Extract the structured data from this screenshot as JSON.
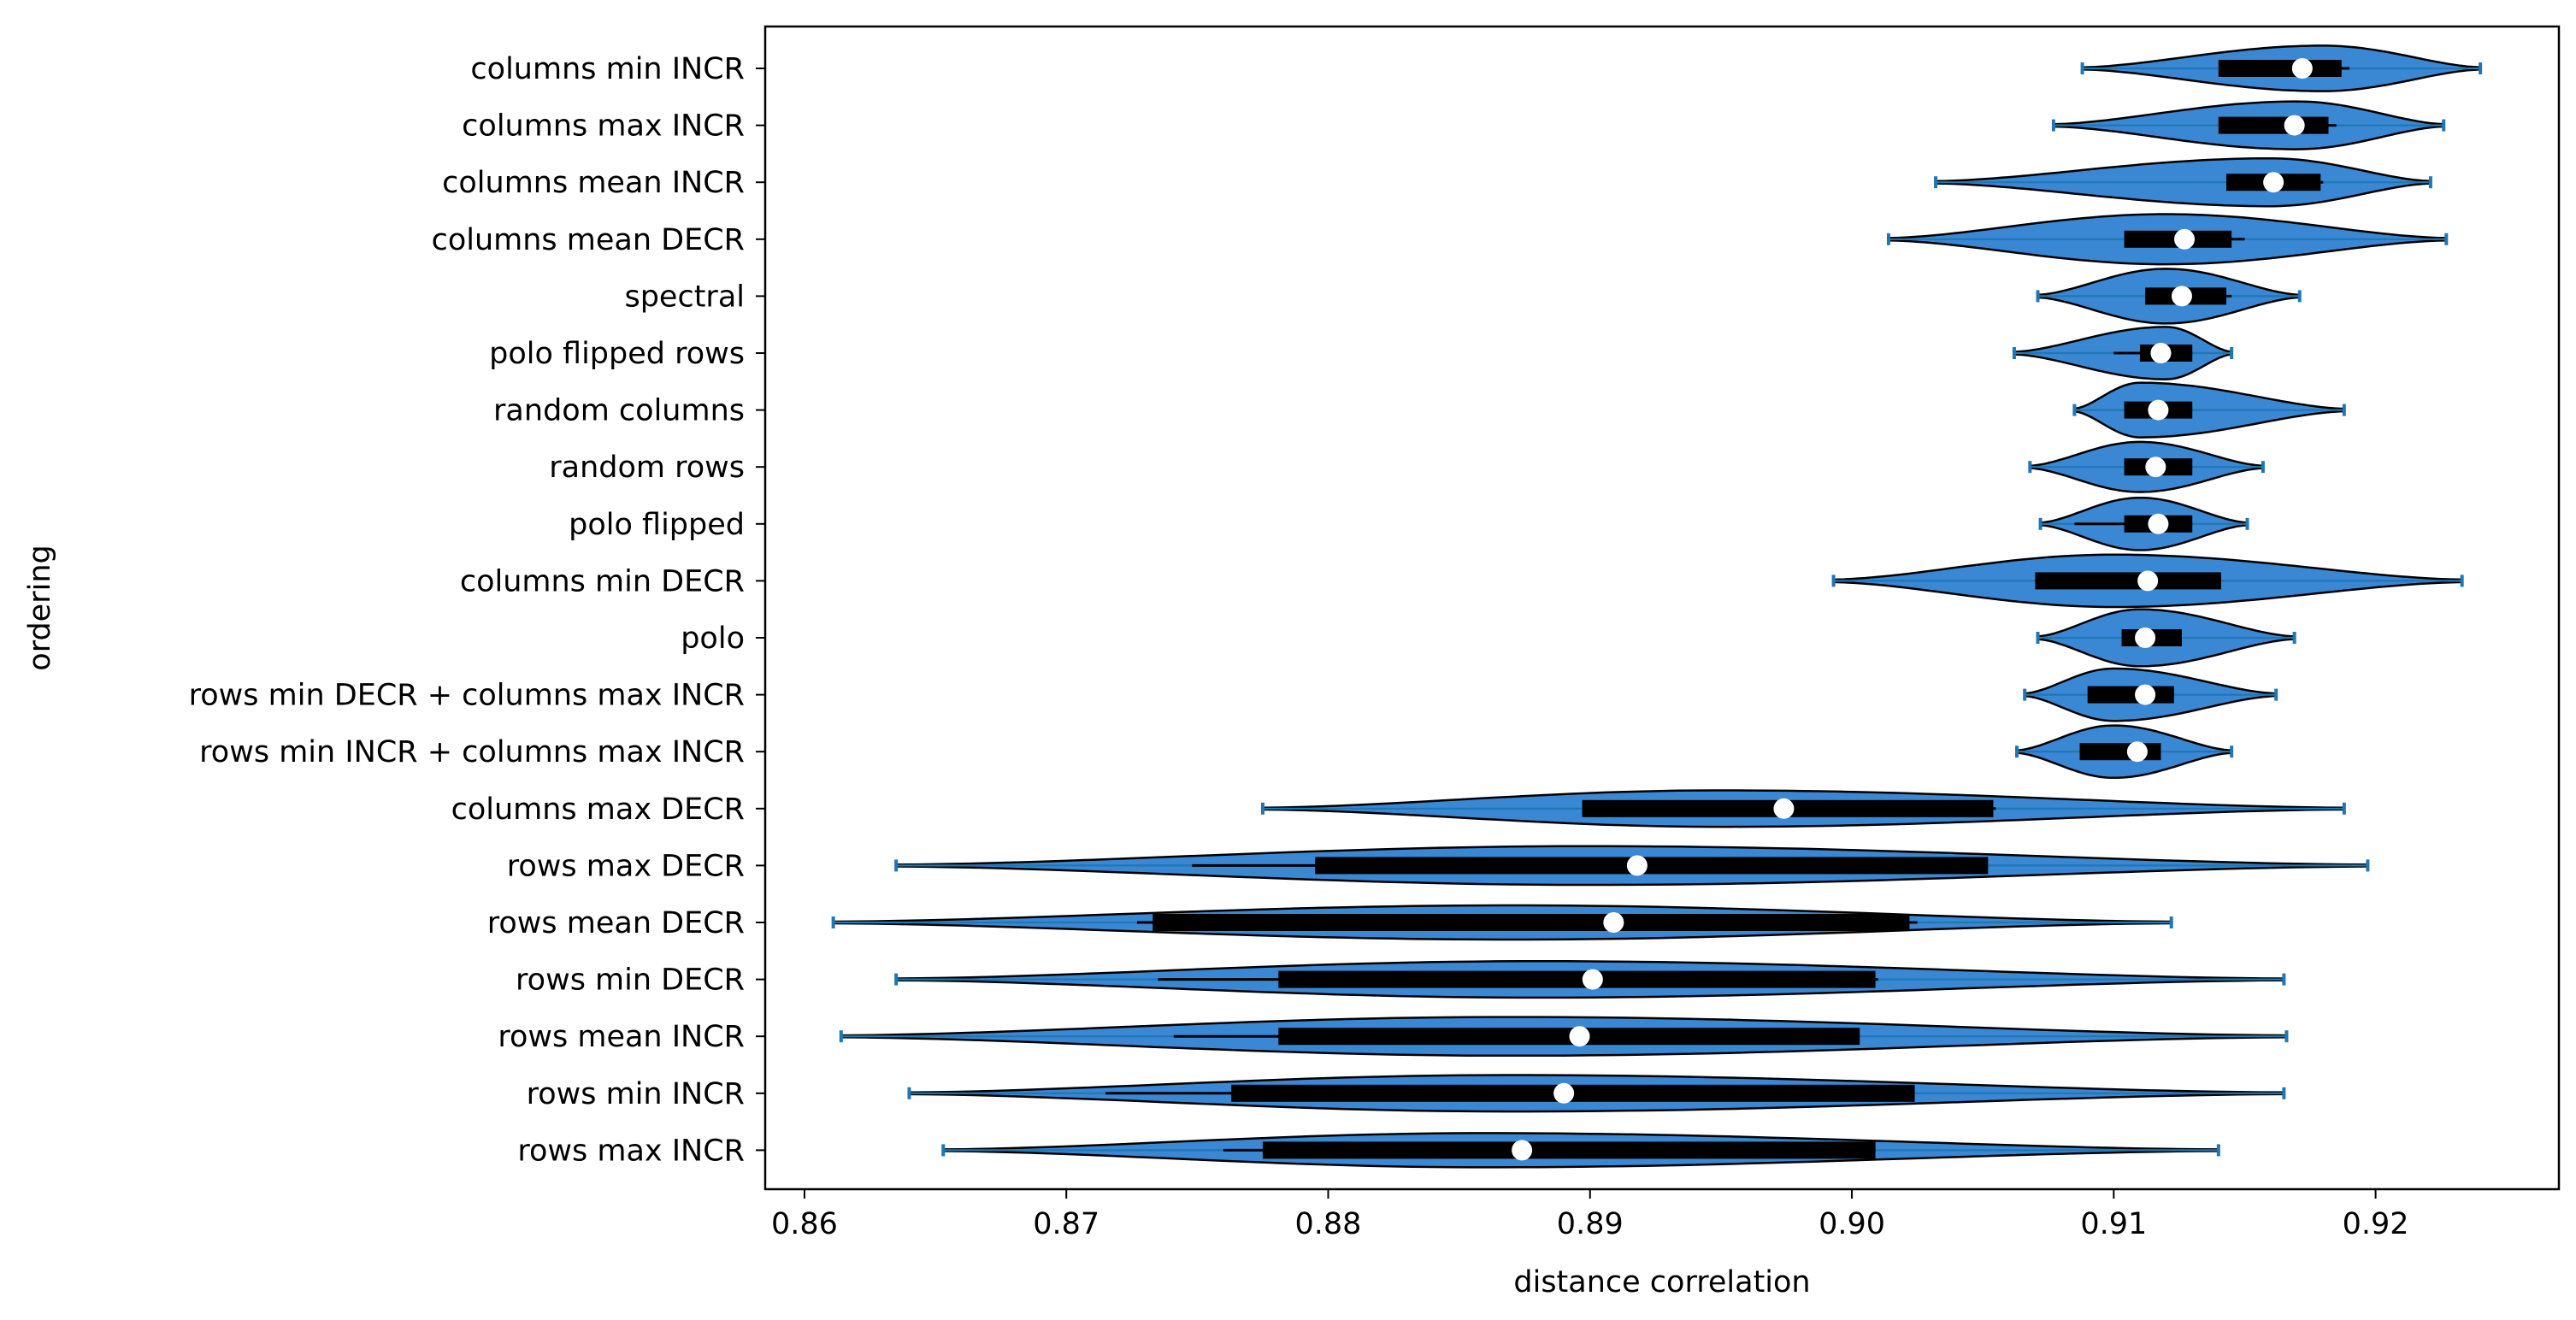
{
  "chart_data": {
    "type": "violin",
    "orientation": "horizontal",
    "xlabel": "distance correlation",
    "ylabel": "ordering",
    "xlim": [
      0.8585,
      0.927
    ],
    "xticks": [
      0.86,
      0.87,
      0.88,
      0.89,
      0.9,
      0.91,
      0.92
    ],
    "xtick_labels": [
      "0.86",
      "0.87",
      "0.88",
      "0.89",
      "0.90",
      "0.91",
      "0.92"
    ],
    "grid": false,
    "colors": {
      "violin_fill": "#3a87d4",
      "violin_edge": "#000000",
      "whisker": "#1f77b4",
      "box": "#000000",
      "median": "#ffffff"
    },
    "violins": [
      {
        "label": "columns min INCR",
        "min": 0.9088,
        "q1": 0.914,
        "median": 0.9172,
        "q3": 0.9187,
        "max": 0.924,
        "wlow": 0.915,
        "whigh": 0.919,
        "half_width": 0.4,
        "peak": 0.918
      },
      {
        "label": "columns max INCR",
        "min": 0.9077,
        "q1": 0.914,
        "median": 0.9169,
        "q3": 0.9182,
        "max": 0.9226,
        "wlow": 0.914,
        "whigh": 0.9185,
        "half_width": 0.42,
        "peak": 0.917
      },
      {
        "label": "columns mean INCR",
        "min": 0.9032,
        "q1": 0.9143,
        "median": 0.9161,
        "q3": 0.9179,
        "max": 0.9221,
        "wlow": 0.9145,
        "whigh": 0.918,
        "half_width": 0.42,
        "peak": 0.916
      },
      {
        "label": "columns mean DECR",
        "min": 0.9014,
        "q1": 0.9104,
        "median": 0.9127,
        "q3": 0.9145,
        "max": 0.9227,
        "wlow": 0.9105,
        "whigh": 0.915,
        "half_width": 0.44,
        "peak": 0.912
      },
      {
        "label": "spectral",
        "min": 0.9071,
        "q1": 0.9112,
        "median": 0.9126,
        "q3": 0.9143,
        "max": 0.9171,
        "wlow": 0.9115,
        "whigh": 0.9145,
        "half_width": 0.48,
        "peak": 0.912
      },
      {
        "label": "polo flipped rows",
        "min": 0.9062,
        "q1": 0.911,
        "median": 0.9118,
        "q3": 0.913,
        "max": 0.9145,
        "wlow": 0.91,
        "whigh": 0.913,
        "half_width": 0.46,
        "peak": 0.912
      },
      {
        "label": "random columns",
        "min": 0.9085,
        "q1": 0.9104,
        "median": 0.9117,
        "q3": 0.913,
        "max": 0.9188,
        "wlow": 0.9105,
        "whigh": 0.913,
        "half_width": 0.48,
        "peak": 0.911
      },
      {
        "label": "random rows",
        "min": 0.9068,
        "q1": 0.9104,
        "median": 0.9116,
        "q3": 0.913,
        "max": 0.9157,
        "wlow": 0.9108,
        "whigh": 0.913,
        "half_width": 0.44,
        "peak": 0.911
      },
      {
        "label": "polo flipped",
        "min": 0.9072,
        "q1": 0.9104,
        "median": 0.9117,
        "q3": 0.913,
        "max": 0.9151,
        "wlow": 0.9085,
        "whigh": 0.913,
        "half_width": 0.46,
        "peak": 0.911
      },
      {
        "label": "columns min DECR",
        "min": 0.8993,
        "q1": 0.907,
        "median": 0.9113,
        "q3": 0.9141,
        "max": 0.9233,
        "wlow": 0.907,
        "whigh": 0.914,
        "half_width": 0.46,
        "peak": 0.91
      },
      {
        "label": "polo",
        "min": 0.9071,
        "q1": 0.9103,
        "median": 0.9112,
        "q3": 0.9126,
        "max": 0.9169,
        "wlow": 0.9103,
        "whigh": 0.9126,
        "half_width": 0.5,
        "peak": 0.911
      },
      {
        "label": "rows min DECR + columns max INCR",
        "min": 0.9066,
        "q1": 0.909,
        "median": 0.9112,
        "q3": 0.9123,
        "max": 0.9162,
        "wlow": 0.9095,
        "whigh": 0.9123,
        "half_width": 0.46,
        "peak": 0.91
      },
      {
        "label": "rows min INCR + columns max INCR",
        "min": 0.9063,
        "q1": 0.9087,
        "median": 0.9109,
        "q3": 0.9118,
        "max": 0.9145,
        "wlow": 0.9087,
        "whigh": 0.9118,
        "half_width": 0.46,
        "peak": 0.91
      },
      {
        "label": "columns max DECR",
        "min": 0.8775,
        "q1": 0.8897,
        "median": 0.8974,
        "q3": 0.9054,
        "max": 0.9188,
        "wlow": 0.89,
        "whigh": 0.9055,
        "half_width": 0.32,
        "peak": 0.895
      },
      {
        "label": "rows max DECR",
        "min": 0.8635,
        "q1": 0.8795,
        "median": 0.8918,
        "q3": 0.9052,
        "max": 0.9197,
        "wlow": 0.8748,
        "whigh": 0.905,
        "half_width": 0.34,
        "peak": 0.89
      },
      {
        "label": "rows mean DECR",
        "min": 0.8611,
        "q1": 0.8733,
        "median": 0.8909,
        "q3": 0.9022,
        "max": 0.9122,
        "wlow": 0.8727,
        "whigh": 0.9025,
        "half_width": 0.3,
        "peak": 0.887
      },
      {
        "label": "rows min DECR",
        "min": 0.8635,
        "q1": 0.8781,
        "median": 0.8901,
        "q3": 0.9009,
        "max": 0.9165,
        "wlow": 0.8735,
        "whigh": 0.901,
        "half_width": 0.32,
        "peak": 0.888
      },
      {
        "label": "rows mean INCR",
        "min": 0.8614,
        "q1": 0.8781,
        "median": 0.8896,
        "q3": 0.9003,
        "max": 0.9166,
        "wlow": 0.8741,
        "whigh": 0.9003,
        "half_width": 0.34,
        "peak": 0.887
      },
      {
        "label": "rows min INCR",
        "min": 0.864,
        "q1": 0.8763,
        "median": 0.889,
        "q3": 0.9024,
        "max": 0.9165,
        "wlow": 0.8715,
        "whigh": 0.9024,
        "half_width": 0.32,
        "peak": 0.887
      },
      {
        "label": "rows max INCR",
        "min": 0.8653,
        "q1": 0.8775,
        "median": 0.8874,
        "q3": 0.9009,
        "max": 0.914,
        "wlow": 0.876,
        "whigh": 0.9009,
        "half_width": 0.3,
        "peak": 0.886
      }
    ]
  }
}
